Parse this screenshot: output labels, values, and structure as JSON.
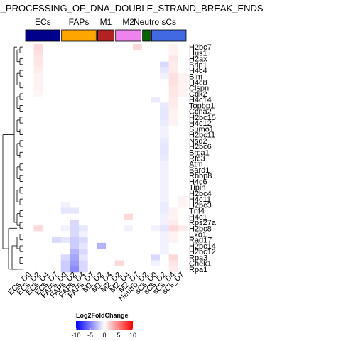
{
  "chart_data": {
    "type": "heatmap",
    "title": "E_PROCESSING_OF_DNA_DOUBLE_STRAND_BREAK_ENDS",
    "column_groups": [
      {
        "name": "ECs",
        "color": "#00008B",
        "count": 4
      },
      {
        "name": "FAPs",
        "color": "#FFA500",
        "count": 4
      },
      {
        "name": "M1",
        "color": "#B22222",
        "count": 2
      },
      {
        "name": "M2",
        "color": "#EE82EE",
        "count": 3
      },
      {
        "name": "Neutro",
        "color": "#006400",
        "count": 1
      },
      {
        "name": "sCs",
        "color": "#4169E1",
        "count": 4
      }
    ],
    "columns": [
      "ECs_D0",
      "ECs_D2",
      "ECs_D4",
      "ECs_D7",
      "FAPs_D0",
      "FAPs_D2",
      "FAPs_D4",
      "FAPs_D7",
      "M1_D2",
      "M1_D4",
      "M2_D2",
      "M2_D4",
      "M2_D7",
      "Neutro_D2",
      "sCs_D0",
      "sCs_D2",
      "sCs_D4",
      "sCs_D7"
    ],
    "rows": [
      "H2bc7",
      "Hus1",
      "H2ax",
      "Brip1",
      "H4c4",
      "Blm",
      "H4c8",
      "Clspn",
      "Cdk2",
      "H4c14",
      "Topbp1",
      "Ccna2",
      "H2bc15",
      "H4c12",
      "Sumo1",
      "H2bc11",
      "Nsd2",
      "H2bc6",
      "Brca1",
      "Rfc3",
      "Atm",
      "Bard1",
      "Rbbp8",
      "H4c6",
      "Tipin",
      "H2bc4",
      "H4c11",
      "H2bc3",
      "Tnf4",
      "H4c1",
      "Rps27a",
      "H2bc8",
      "Exo1",
      "Rad17",
      "H2bc14",
      "H2bc12",
      "Rpa3",
      "Chek1",
      "Rpa1"
    ],
    "values": [
      [
        0,
        1.5,
        0,
        0,
        0,
        0,
        0,
        0,
        0,
        0,
        0,
        0,
        1.5,
        0,
        0,
        0,
        0.5,
        0
      ],
      [
        0,
        1.2,
        0,
        0,
        0,
        0,
        0,
        0,
        0,
        0,
        0,
        0,
        0,
        0,
        0,
        0,
        0.5,
        0
      ],
      [
        0,
        1.0,
        0,
        0,
        0,
        0,
        0,
        0,
        0,
        0,
        0,
        0,
        0,
        0,
        0,
        0,
        1.0,
        0
      ],
      [
        0,
        1.0,
        0,
        0,
        0,
        0,
        0,
        0,
        0,
        0,
        0,
        0,
        0,
        0,
        0,
        -1.5,
        0.8,
        0
      ],
      [
        0,
        0.8,
        0,
        0,
        0,
        0,
        0,
        0,
        0,
        0,
        0,
        0,
        0,
        0,
        0,
        -1.0,
        0.8,
        0
      ],
      [
        0,
        0.5,
        0,
        0,
        0,
        0,
        0,
        0,
        0,
        0,
        0,
        0,
        0,
        0,
        0,
        -0.5,
        1.2,
        0.5
      ],
      [
        0,
        0.5,
        0,
        0,
        0,
        0,
        0,
        0,
        0,
        0,
        0,
        0,
        0,
        0,
        0,
        0,
        1.2,
        0.5
      ],
      [
        0,
        0.5,
        0,
        0,
        0,
        0,
        0,
        0,
        0,
        0,
        0,
        0,
        0,
        0,
        0,
        0,
        1.0,
        0.5
      ],
      [
        0,
        0.3,
        0,
        0,
        0,
        0,
        0,
        0,
        0,
        0,
        0,
        0,
        0,
        0,
        0,
        0,
        1.0,
        0.5
      ],
      [
        0,
        0,
        0,
        0,
        0,
        0,
        0,
        0,
        0,
        0,
        0,
        0,
        0,
        0,
        -0.8,
        0,
        0.8,
        0
      ],
      [
        0,
        0,
        0,
        0,
        0,
        0,
        0,
        0,
        0,
        0,
        0,
        0,
        0,
        0,
        0,
        -0.8,
        0.8,
        0
      ],
      [
        0,
        0,
        0,
        0,
        0,
        0,
        0,
        0,
        0,
        0,
        0,
        0,
        0,
        0,
        0,
        -1.0,
        0.5,
        0
      ],
      [
        0,
        0,
        0,
        0,
        0,
        0,
        0,
        0,
        0,
        0,
        0,
        0,
        0,
        0,
        0,
        -1.0,
        0.5,
        0
      ],
      [
        0,
        0,
        0,
        0,
        0,
        0,
        0,
        0,
        0,
        0,
        0,
        0,
        0,
        0,
        0,
        -0.8,
        0.5,
        0
      ],
      [
        0,
        0,
        0,
        0,
        0,
        0,
        0,
        0,
        0,
        0,
        0,
        0,
        0,
        0,
        0,
        -0.5,
        0,
        0
      ],
      [
        0,
        0,
        0,
        0,
        0,
        0,
        0,
        0,
        0,
        0,
        0,
        0,
        0,
        0,
        0,
        -0.5,
        0,
        0
      ],
      [
        0,
        0,
        0,
        0,
        0,
        0,
        0,
        0,
        0,
        0,
        0,
        0,
        0,
        0,
        0,
        -0.8,
        0,
        0
      ],
      [
        0,
        0,
        0,
        0,
        0,
        0,
        0,
        0,
        0,
        0,
        0,
        0,
        0,
        0,
        0,
        -1.0,
        0,
        0
      ],
      [
        0,
        0,
        0,
        0,
        0,
        0,
        0,
        0,
        0,
        0,
        0,
        0,
        0,
        0,
        0,
        -1.0,
        0,
        0
      ],
      [
        0,
        0,
        0,
        0,
        0,
        0,
        0,
        0,
        0,
        0,
        0,
        0,
        0,
        0,
        0,
        -0.8,
        0,
        0
      ],
      [
        0,
        0,
        0,
        0,
        0,
        0,
        0,
        0,
        0,
        0,
        0,
        0,
        0,
        0,
        0,
        -0.5,
        0,
        0
      ],
      [
        0,
        0,
        0,
        0,
        0,
        0,
        0,
        0,
        0,
        0,
        0,
        0,
        0,
        0,
        0,
        -0.5,
        0,
        0
      ],
      [
        0,
        0,
        0,
        0,
        0,
        0,
        0,
        0,
        0,
        0,
        0,
        0,
        0,
        0,
        0,
        -0.5,
        0,
        0
      ],
      [
        0,
        0,
        0,
        0,
        0,
        0,
        0,
        0,
        0,
        0,
        0,
        0,
        0,
        0,
        0,
        -0.5,
        0,
        0
      ],
      [
        0,
        0,
        0,
        0,
        0,
        0,
        0,
        0,
        0,
        0,
        0,
        0,
        0,
        0,
        0,
        -0.5,
        0,
        0
      ],
      [
        0,
        0,
        0,
        0,
        0,
        0,
        0,
        0,
        0,
        0,
        0,
        0,
        0,
        0,
        0,
        -0.5,
        0,
        0
      ],
      [
        0,
        0,
        0,
        0,
        0,
        0,
        0,
        0,
        0,
        0,
        0,
        0,
        0,
        0,
        0,
        -0.5,
        0,
        0.5
      ],
      [
        0,
        0,
        0,
        0,
        -0.5,
        0,
        0,
        0,
        0,
        0,
        0,
        0,
        0,
        0,
        0,
        -0.8,
        0,
        0.5
      ],
      [
        0,
        0,
        0,
        0,
        -1.0,
        -1.0,
        0,
        0,
        0,
        0,
        0,
        0,
        0,
        0,
        0,
        -0.8,
        0.5,
        0
      ],
      [
        0,
        0,
        0,
        0,
        0,
        0,
        0,
        0,
        0,
        0,
        0,
        1.5,
        0,
        0,
        0,
        -0.5,
        0.5,
        0
      ],
      [
        0,
        0,
        0,
        0,
        0,
        -1.5,
        0,
        0,
        0,
        0,
        0,
        0,
        0,
        0,
        0,
        -0.5,
        0.8,
        0
      ],
      [
        0,
        1.5,
        0,
        0,
        -0.5,
        -1.5,
        -1.0,
        0,
        0,
        0,
        0,
        -0.5,
        0,
        0,
        -0.5,
        -1.0,
        1.5,
        0.8
      ],
      [
        0,
        0,
        0,
        0,
        0,
        -1.5,
        -0.5,
        0,
        0,
        0,
        0,
        0,
        0,
        0,
        0,
        -0.5,
        0.5,
        0
      ],
      [
        0,
        0,
        0,
        -1.5,
        -1.0,
        -2.0,
        -1.5,
        0,
        0,
        0,
        0,
        0,
        0,
        0,
        0,
        -0.5,
        0.5,
        0
      ],
      [
        0,
        0,
        0,
        0,
        0,
        -2.0,
        -1.0,
        0,
        -3.0,
        0,
        0,
        0,
        0,
        0,
        0,
        -0.5,
        0,
        0
      ],
      [
        0,
        0,
        0,
        0,
        0,
        -3.0,
        -1.5,
        0,
        0,
        0,
        0,
        0,
        0,
        0,
        0,
        -0.5,
        0,
        0
      ],
      [
        0,
        0,
        0,
        0,
        -1.5,
        -3.5,
        -1.0,
        0,
        0,
        0,
        0,
        0,
        0,
        0,
        -1.5,
        0,
        1.5,
        0
      ],
      [
        0,
        0,
        0,
        0,
        -2.0,
        -4.0,
        -1.5,
        0,
        0,
        0,
        1.5,
        0,
        0,
        0,
        -0.5,
        0,
        1.0,
        0
      ],
      [
        0,
        0,
        0,
        0,
        -2.0,
        -4.5,
        -1.5,
        0,
        0,
        0,
        0,
        0,
        0,
        0,
        0,
        0,
        0.8,
        0
      ]
    ],
    "legend": {
      "title": "Log2FoldChange",
      "ticks": [
        -10,
        -5,
        0,
        5,
        10
      ],
      "range": [
        -10,
        10
      ],
      "colors": {
        "low": "#0000FF",
        "mid": "#FFFFFF",
        "high": "#FF0000"
      }
    }
  }
}
